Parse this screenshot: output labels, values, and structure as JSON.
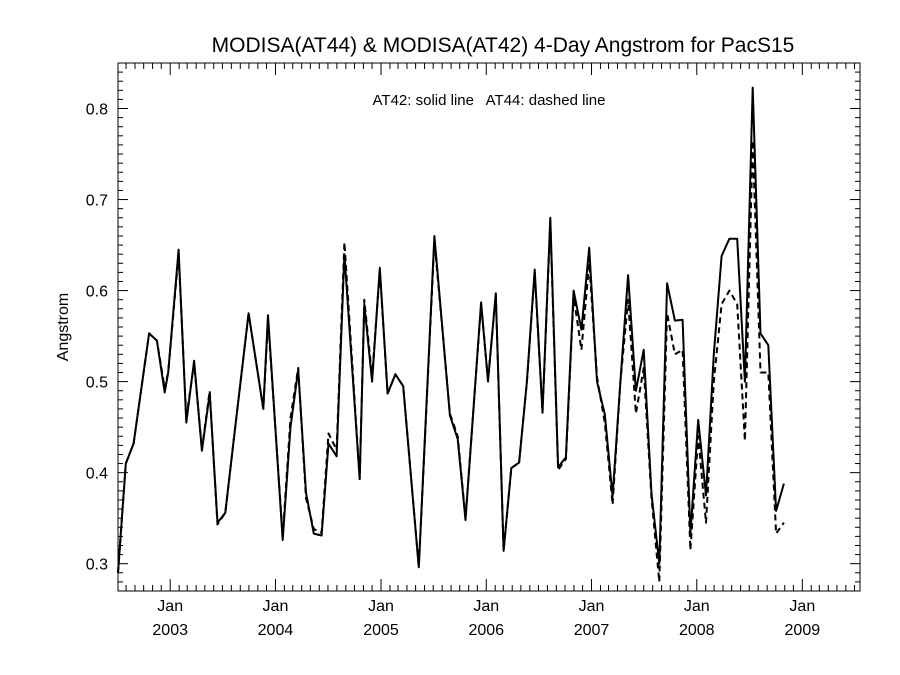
{
  "chart_data": {
    "type": "line",
    "title": "MODISA(AT44) & MODISA(AT42) 4-Day Angstrom for PacS15",
    "annotation": "AT42: solid line   AT44: dashed line",
    "xlabel": "",
    "ylabel": "Angstrom",
    "xlim": [
      "2002-07-04",
      "2009-07-20"
    ],
    "ylim": [
      0.27,
      0.85
    ],
    "yticks": [
      0.3,
      0.4,
      0.5,
      0.6,
      0.7,
      0.8
    ],
    "ytick_labels": [
      "0.3",
      "0.4",
      "0.5",
      "0.6",
      "0.7",
      "0.8"
    ],
    "xticks": [
      {
        "date": "2003-01-01",
        "month": "Jan",
        "year": "2003"
      },
      {
        "date": "2004-01-01",
        "month": "Jan",
        "year": "2004"
      },
      {
        "date": "2005-01-01",
        "month": "Jan",
        "year": "2005"
      },
      {
        "date": "2006-01-01",
        "month": "Jan",
        "year": "2006"
      },
      {
        "date": "2007-01-01",
        "month": "Jan",
        "year": "2007"
      },
      {
        "date": "2008-01-01",
        "month": "Jan",
        "year": "2008"
      },
      {
        "date": "2009-01-01",
        "month": "Jan",
        "year": "2009"
      }
    ],
    "grid": false,
    "legend": "none",
    "series": [
      {
        "name": "AT42",
        "style": "solid",
        "color": "#000000",
        "points": [
          [
            "2002-07-04",
            0.29
          ],
          [
            "2002-07-31",
            0.41
          ],
          [
            "2002-08-27",
            0.432
          ],
          [
            "2002-10-20",
            0.553
          ],
          [
            "2002-11-16",
            0.545
          ],
          [
            "2002-12-13",
            0.488
          ],
          [
            "2002-12-25",
            0.51
          ],
          [
            "2003-01-30",
            0.645
          ],
          [
            "2003-02-26",
            0.455
          ],
          [
            "2003-03-25",
            0.523
          ],
          [
            "2003-04-21",
            0.424
          ],
          [
            "2003-05-18",
            0.487
          ],
          [
            "2003-06-14",
            0.345
          ],
          [
            "2003-07-11",
            0.356
          ],
          [
            "2003-08-07",
            0.43
          ],
          [
            "2003-09-30",
            0.575
          ],
          [
            "2003-11-20",
            0.47
          ],
          [
            "2003-12-06",
            0.573
          ],
          [
            "2004-01-26",
            0.326
          ],
          [
            "2004-02-22",
            0.45
          ],
          [
            "2004-03-20",
            0.513
          ],
          [
            "2004-04-16",
            0.378
          ],
          [
            "2004-05-13",
            0.333
          ],
          [
            "2004-06-09",
            0.331
          ],
          [
            "2004-07-03",
            0.432
          ],
          [
            "2004-07-31",
            0.418
          ],
          [
            "2004-08-27",
            0.64
          ],
          [
            "2004-10-19",
            0.393
          ],
          [
            "2004-11-04",
            0.585
          ],
          [
            "2004-12-01",
            0.5
          ],
          [
            "2004-12-28",
            0.625
          ],
          [
            "2005-01-24",
            0.487
          ],
          [
            "2005-02-20",
            0.508
          ],
          [
            "2005-03-19",
            0.495
          ],
          [
            "2005-05-12",
            0.296
          ],
          [
            "2005-07-05",
            0.66
          ],
          [
            "2005-08-28",
            0.463
          ],
          [
            "2005-09-24",
            0.437
          ],
          [
            "2005-10-21",
            0.348
          ],
          [
            "2005-12-14",
            0.587
          ],
          [
            "2006-01-07",
            0.5
          ],
          [
            "2006-02-03",
            0.597
          ],
          [
            "2006-03-02",
            0.314
          ],
          [
            "2006-03-29",
            0.405
          ],
          [
            "2006-04-25",
            0.411
          ],
          [
            "2006-05-22",
            0.5
          ],
          [
            "2006-06-18",
            0.623
          ],
          [
            "2006-07-15",
            0.466
          ],
          [
            "2006-08-11",
            0.68
          ],
          [
            "2006-09-07",
            0.406
          ],
          [
            "2006-10-04",
            0.417
          ],
          [
            "2006-10-31",
            0.6
          ],
          [
            "2006-11-27",
            0.557
          ],
          [
            "2006-12-24",
            0.647
          ],
          [
            "2007-01-20",
            0.5
          ],
          [
            "2007-02-16",
            0.464
          ],
          [
            "2007-03-15",
            0.374
          ],
          [
            "2007-04-11",
            0.5
          ],
          [
            "2007-05-08",
            0.617
          ],
          [
            "2007-06-04",
            0.49
          ],
          [
            "2007-07-01",
            0.535
          ],
          [
            "2007-07-28",
            0.377
          ],
          [
            "2007-08-24",
            0.3
          ],
          [
            "2007-09-20",
            0.608
          ],
          [
            "2007-10-17",
            0.567
          ],
          [
            "2007-11-13",
            0.568
          ],
          [
            "2007-12-10",
            0.333
          ],
          [
            "2008-01-06",
            0.458
          ],
          [
            "2008-02-02",
            0.375
          ],
          [
            "2008-02-29",
            0.53
          ],
          [
            "2008-03-27",
            0.638
          ],
          [
            "2008-04-23",
            0.657
          ],
          [
            "2008-05-20",
            0.657
          ],
          [
            "2008-06-16",
            0.5
          ],
          [
            "2008-07-13",
            0.823
          ],
          [
            "2008-08-09",
            0.553
          ],
          [
            "2008-09-05",
            0.54
          ],
          [
            "2008-10-02",
            0.358
          ],
          [
            "2008-10-29",
            0.388
          ]
        ]
      },
      {
        "name": "AT44",
        "style": "dashed",
        "color": "#000000",
        "points": [
          [
            "2002-07-04",
            0.29
          ],
          [
            "2002-07-31",
            0.41
          ],
          [
            "2002-08-27",
            0.432
          ],
          [
            "2002-10-20",
            0.553
          ],
          [
            "2002-11-16",
            0.545
          ],
          [
            "2002-12-13",
            0.493
          ],
          [
            "2002-12-25",
            0.51
          ],
          [
            "2003-01-30",
            0.64
          ],
          [
            "2003-02-26",
            0.46
          ],
          [
            "2003-03-25",
            0.52
          ],
          [
            "2003-04-21",
            0.426
          ],
          [
            "2003-05-18",
            0.49
          ],
          [
            "2003-06-14",
            0.343
          ],
          [
            "2003-07-11",
            0.356
          ],
          [
            "2003-08-07",
            0.43
          ],
          [
            "2003-09-30",
            0.575
          ],
          [
            "2003-11-20",
            0.47
          ],
          [
            "2003-12-06",
            0.568
          ],
          [
            "2004-01-26",
            0.33
          ],
          [
            "2004-02-22",
            0.46
          ],
          [
            "2004-03-20",
            0.515
          ],
          [
            "2004-04-16",
            0.372
          ],
          [
            "2004-05-13",
            0.338
          ],
          [
            "2004-06-09",
            0.334
          ],
          [
            "2004-07-03",
            0.443
          ],
          [
            "2004-07-31",
            0.425
          ],
          [
            "2004-08-27",
            0.653
          ],
          [
            "2004-10-19",
            0.393
          ],
          [
            "2004-11-04",
            0.59
          ],
          [
            "2004-12-01",
            0.505
          ],
          [
            "2004-12-28",
            0.622
          ],
          [
            "2005-01-24",
            0.487
          ],
          [
            "2005-02-20",
            0.508
          ],
          [
            "2005-03-19",
            0.495
          ],
          [
            "2005-05-12",
            0.296
          ],
          [
            "2005-07-05",
            0.655
          ],
          [
            "2005-08-28",
            0.465
          ],
          [
            "2005-09-24",
            0.44
          ],
          [
            "2005-10-21",
            0.35
          ],
          [
            "2005-12-14",
            0.585
          ],
          [
            "2006-01-07",
            0.502
          ],
          [
            "2006-02-03",
            0.595
          ],
          [
            "2006-03-02",
            0.314
          ],
          [
            "2006-03-29",
            0.405
          ],
          [
            "2006-04-25",
            0.411
          ],
          [
            "2006-05-22",
            0.5
          ],
          [
            "2006-06-18",
            0.62
          ],
          [
            "2006-07-15",
            0.466
          ],
          [
            "2006-08-11",
            0.675
          ],
          [
            "2006-09-07",
            0.403
          ],
          [
            "2006-10-04",
            0.415
          ],
          [
            "2006-10-31",
            0.594
          ],
          [
            "2006-11-27",
            0.535
          ],
          [
            "2006-12-24",
            0.63
          ],
          [
            "2007-01-20",
            0.505
          ],
          [
            "2007-02-16",
            0.455
          ],
          [
            "2007-03-15",
            0.365
          ],
          [
            "2007-04-11",
            0.5
          ],
          [
            "2007-05-08",
            0.59
          ],
          [
            "2007-06-04",
            0.465
          ],
          [
            "2007-07-01",
            0.515
          ],
          [
            "2007-07-28",
            0.372
          ],
          [
            "2007-08-24",
            0.28
          ],
          [
            "2007-09-20",
            0.575
          ],
          [
            "2007-10-17",
            0.53
          ],
          [
            "2007-11-13",
            0.535
          ],
          [
            "2007-12-10",
            0.315
          ],
          [
            "2008-01-06",
            0.44
          ],
          [
            "2008-02-02",
            0.345
          ],
          [
            "2008-02-29",
            0.5
          ],
          [
            "2008-03-27",
            0.585
          ],
          [
            "2008-04-23",
            0.6
          ],
          [
            "2008-05-20",
            0.585
          ],
          [
            "2008-06-16",
            0.435
          ],
          [
            "2008-07-13",
            0.765
          ],
          [
            "2008-08-09",
            0.51
          ],
          [
            "2008-09-05",
            0.51
          ],
          [
            "2008-10-02",
            0.333
          ],
          [
            "2008-10-29",
            0.345
          ]
        ]
      }
    ]
  }
}
